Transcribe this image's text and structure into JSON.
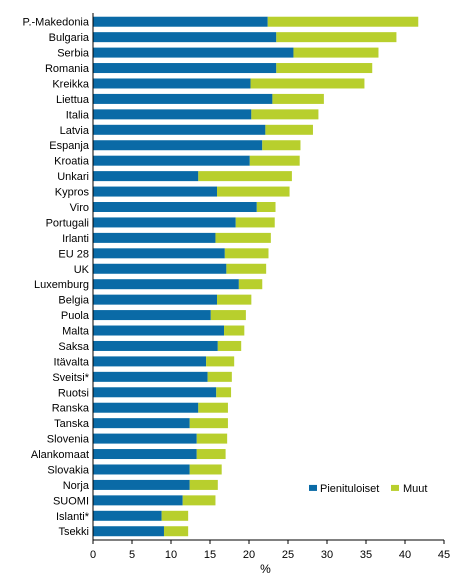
{
  "chart_data": {
    "type": "bar",
    "orientation": "horizontal",
    "stacked": true,
    "categories": [
      "P.-Makedonia",
      "Bulgaria",
      "Serbia",
      "Romania",
      "Kreikka",
      "Liettua",
      "Italia",
      "Latvia",
      "Espanja",
      "Kroatia",
      "Unkari",
      "Kypros",
      "Viro",
      "Portugali",
      "Irlanti",
      "EU 28",
      "UK",
      "Luxemburg",
      "Belgia",
      "Puola",
      "Malta",
      "Saksa",
      "Itävalta",
      "Sveitsi*",
      "Ruotsi",
      "Ranska",
      "Tanska",
      "Slovenia",
      "Alankomaat",
      "Slovakia",
      "Norja",
      "SUOMI",
      "Islanti*",
      "Tsekki"
    ],
    "series": [
      {
        "name": "Pienituloiset",
        "color": "#0a6aa6",
        "values": [
          22.4,
          23.5,
          25.7,
          23.5,
          20.2,
          23.0,
          20.3,
          22.1,
          21.7,
          20.1,
          13.5,
          15.9,
          21.0,
          18.3,
          15.7,
          16.9,
          17.1,
          18.7,
          15.9,
          15.1,
          16.8,
          16.0,
          14.5,
          14.7,
          15.8,
          13.5,
          12.4,
          13.3,
          13.3,
          12.4,
          12.4,
          11.5,
          8.8,
          9.1
        ]
      },
      {
        "name": "Muut",
        "color": "#b8cf2d",
        "values": [
          19.3,
          15.4,
          10.9,
          12.3,
          14.6,
          6.6,
          8.6,
          6.1,
          4.9,
          6.4,
          12.0,
          9.3,
          2.4,
          5.0,
          7.1,
          5.6,
          5.1,
          3.0,
          4.4,
          4.5,
          2.6,
          3.0,
          3.6,
          3.1,
          1.9,
          3.8,
          4.9,
          3.9,
          3.7,
          4.1,
          3.6,
          4.2,
          3.4,
          3.1
        ]
      }
    ],
    "xlim": [
      0,
      45
    ],
    "xticks": [
      0,
      5,
      10,
      15,
      20,
      25,
      30,
      35,
      40,
      45
    ],
    "xlabel": "%",
    "grid": "none",
    "legend_position": "bottom-right"
  }
}
